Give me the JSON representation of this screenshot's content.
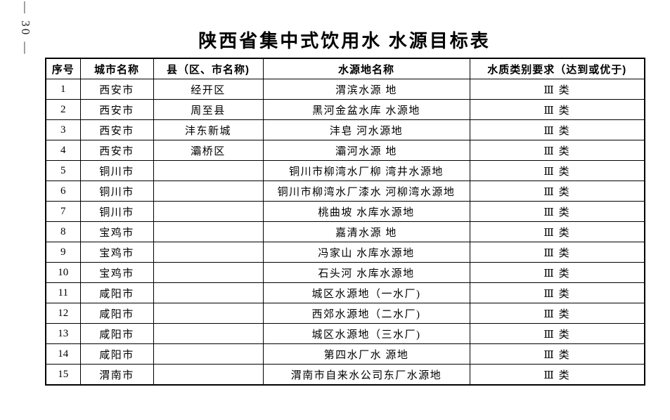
{
  "page": {
    "page_number": "— 30 —",
    "title": "陕西省集中式饮用水 水源目标表"
  },
  "table": {
    "headers": [
      "序号",
      "城市名称",
      "县（区、市名称)",
      "水源地名称",
      "水质类别要求（达到或优于)"
    ],
    "rows": [
      {
        "seq": "1",
        "city": "西安市",
        "county": "经开区",
        "source": "渭滨水源 地",
        "quality": "Ⅲ 类"
      },
      {
        "seq": "2",
        "city": "西安市",
        "county": "周至县",
        "source": "黑河金盆水库 水源地",
        "quality": "Ⅲ 类"
      },
      {
        "seq": "3",
        "city": "西安市",
        "county": "沣东新城",
        "source": "沣皂 河水源地",
        "quality": "Ⅲ 类"
      },
      {
        "seq": "4",
        "city": "西安市",
        "county": "灞桥区",
        "source": "灞河水源 地",
        "quality": "Ⅲ 类"
      },
      {
        "seq": "5",
        "city": "铜川市",
        "county": "",
        "source": "铜川市柳湾水厂柳 湾井水源地",
        "quality": "Ⅲ 类"
      },
      {
        "seq": "6",
        "city": "铜川市",
        "county": "",
        "source": "铜川市柳湾水厂漆水 河柳湾水源地",
        "quality": "Ⅲ 类"
      },
      {
        "seq": "7",
        "city": "铜川市",
        "county": "",
        "source": "桃曲坡 水库水源地",
        "quality": "Ⅲ 类"
      },
      {
        "seq": "8",
        "city": "宝鸡市",
        "county": "",
        "source": "嘉清水源 地",
        "quality": "Ⅲ 类"
      },
      {
        "seq": "9",
        "city": "宝鸡市",
        "county": "",
        "source": "冯家山 水库水源地",
        "quality": "Ⅲ 类"
      },
      {
        "seq": "10",
        "city": "宝鸡市",
        "county": "",
        "source": "石头河 水库水源地",
        "quality": "Ⅲ 类"
      },
      {
        "seq": "11",
        "city": "咸阳市",
        "county": "",
        "source": "城区水源地（一水厂)",
        "quality": "Ⅲ 类"
      },
      {
        "seq": "12",
        "city": "咸阳市",
        "county": "",
        "source": "西郊水源地（二水厂)",
        "quality": "Ⅲ 类"
      },
      {
        "seq": "13",
        "city": "咸阳市",
        "county": "",
        "source": "城区水源地（三水厂)",
        "quality": "Ⅲ 类"
      },
      {
        "seq": "14",
        "city": "咸阳市",
        "county": "",
        "source": "第四水厂水 源地",
        "quality": "Ⅲ 类"
      },
      {
        "seq": "15",
        "city": "渭南市",
        "county": "",
        "source": "渭南市自来水公司东厂水源地",
        "quality": "Ⅲ 类"
      }
    ]
  }
}
